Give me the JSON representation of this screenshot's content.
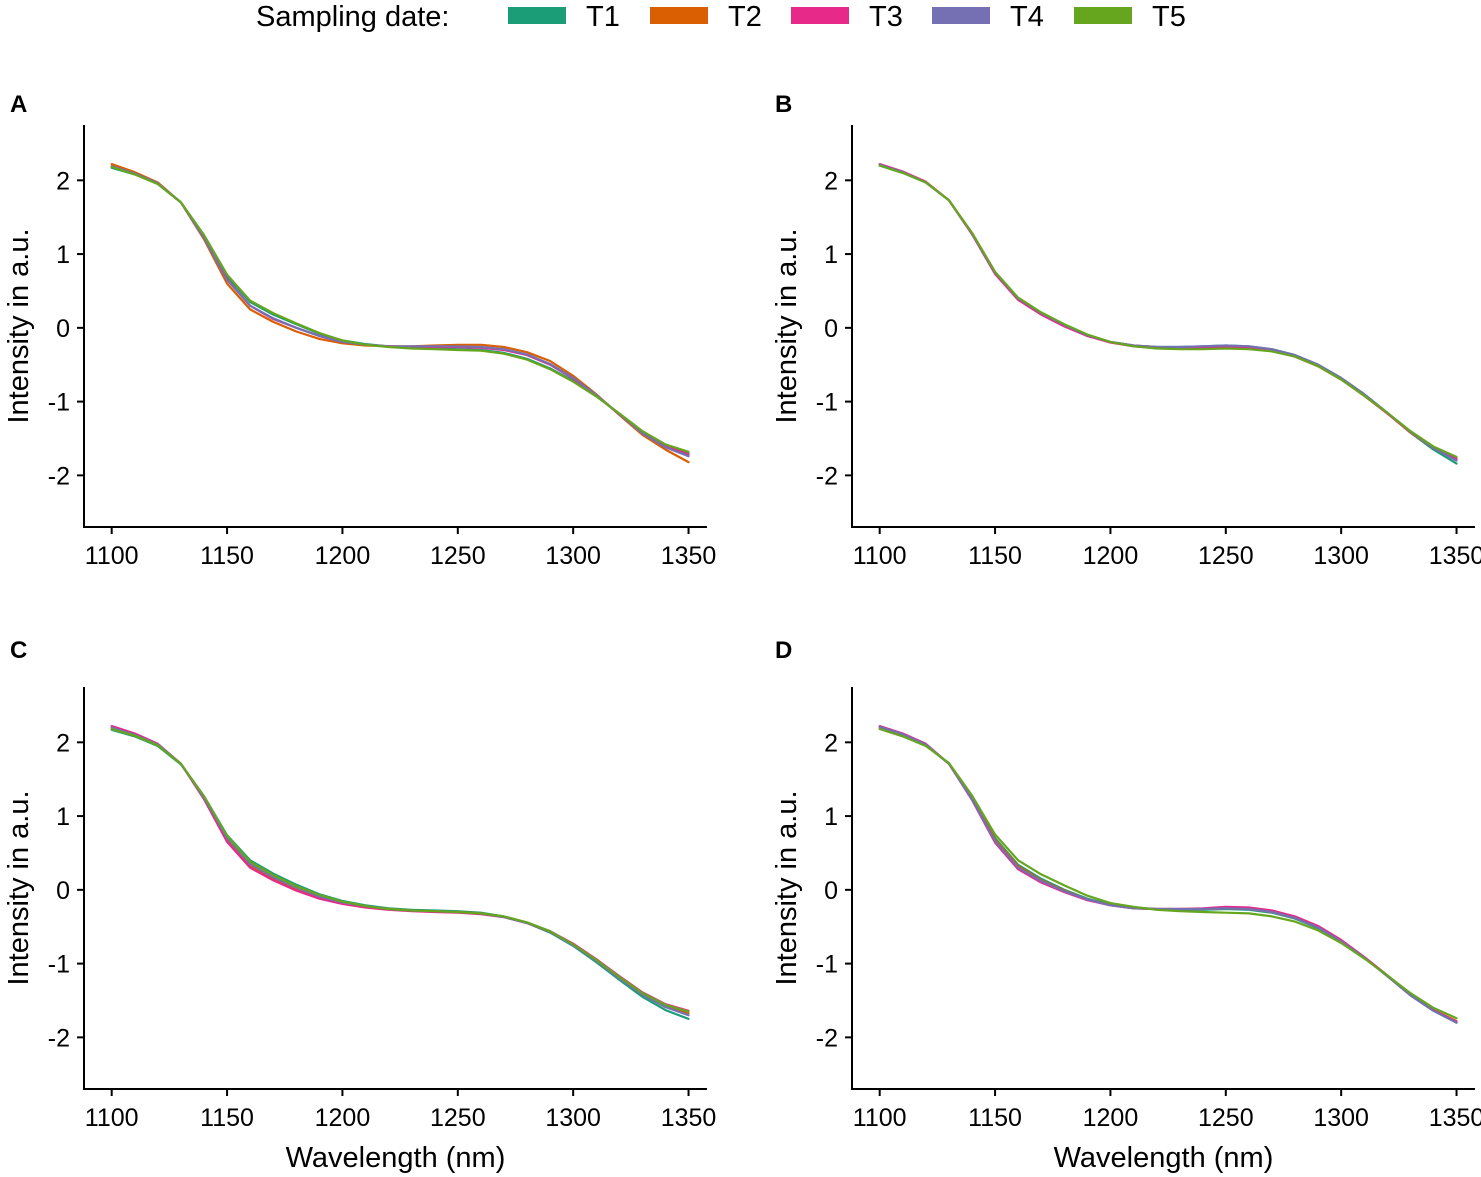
{
  "legend": {
    "title": "Sampling date:",
    "items": [
      {
        "label": "T1",
        "color": "#1B9E77"
      },
      {
        "label": "T2",
        "color": "#D95F02"
      },
      {
        "label": "T3",
        "color": "#E7298A"
      },
      {
        "label": "T4",
        "color": "#7570B3"
      },
      {
        "label": "T5",
        "color": "#66A61E"
      }
    ]
  },
  "chart_data": [
    {
      "type": "line",
      "panel_label": "A",
      "xlabel": "",
      "ylabel": "Intensity in a.u.",
      "xlim": [
        1088,
        1358
      ],
      "ylim": [
        -2.7,
        2.75
      ],
      "xticks": [
        1100,
        1150,
        1200,
        1250,
        1300,
        1350
      ],
      "yticks": [
        -2,
        -1,
        0,
        1,
        2
      ],
      "x": [
        1100,
        1110,
        1120,
        1130,
        1140,
        1150,
        1160,
        1170,
        1180,
        1190,
        1200,
        1210,
        1220,
        1230,
        1240,
        1250,
        1260,
        1270,
        1280,
        1290,
        1300,
        1310,
        1320,
        1330,
        1340,
        1350
      ],
      "series": [
        {
          "name": "T1",
          "values": [
            2.17,
            2.08,
            1.95,
            1.7,
            1.25,
            0.7,
            0.35,
            0.18,
            0.05,
            -0.08,
            -0.17,
            -0.22,
            -0.25,
            -0.27,
            -0.28,
            -0.29,
            -0.3,
            -0.34,
            -0.42,
            -0.55,
            -0.72,
            -0.92,
            -1.17,
            -1.42,
            -1.6,
            -1.7
          ]
        },
        {
          "name": "T2",
          "values": [
            2.22,
            2.11,
            1.97,
            1.7,
            1.2,
            0.6,
            0.25,
            0.08,
            -0.05,
            -0.15,
            -0.21,
            -0.24,
            -0.25,
            -0.25,
            -0.24,
            -0.23,
            -0.23,
            -0.26,
            -0.33,
            -0.45,
            -0.65,
            -0.9,
            -1.18,
            -1.45,
            -1.65,
            -1.82
          ]
        },
        {
          "name": "T3",
          "values": [
            2.19,
            2.09,
            1.96,
            1.7,
            1.23,
            0.66,
            0.3,
            0.12,
            0.0,
            -0.11,
            -0.19,
            -0.23,
            -0.25,
            -0.26,
            -0.26,
            -0.26,
            -0.27,
            -0.3,
            -0.37,
            -0.5,
            -0.69,
            -0.92,
            -1.17,
            -1.42,
            -1.6,
            -1.72
          ]
        },
        {
          "name": "T4",
          "values": [
            2.19,
            2.09,
            1.96,
            1.7,
            1.22,
            0.65,
            0.3,
            0.13,
            0.0,
            -0.11,
            -0.19,
            -0.23,
            -0.25,
            -0.25,
            -0.25,
            -0.25,
            -0.26,
            -0.29,
            -0.36,
            -0.49,
            -0.68,
            -0.91,
            -1.17,
            -1.43,
            -1.62,
            -1.74
          ]
        },
        {
          "name": "T5",
          "values": [
            2.18,
            2.08,
            1.95,
            1.7,
            1.26,
            0.72,
            0.37,
            0.2,
            0.06,
            -0.07,
            -0.17,
            -0.23,
            -0.26,
            -0.28,
            -0.29,
            -0.3,
            -0.31,
            -0.35,
            -0.43,
            -0.56,
            -0.73,
            -0.93,
            -1.16,
            -1.4,
            -1.58,
            -1.68
          ]
        }
      ]
    },
    {
      "type": "line",
      "panel_label": "B",
      "xlabel": "",
      "ylabel": "Intensity in a.u.",
      "xlim": [
        1088,
        1358
      ],
      "ylim": [
        -2.7,
        2.75
      ],
      "xticks": [
        1100,
        1150,
        1200,
        1250,
        1300,
        1350
      ],
      "yticks": [
        -2,
        -1,
        0,
        1,
        2
      ],
      "x": [
        1100,
        1110,
        1120,
        1130,
        1140,
        1150,
        1160,
        1170,
        1180,
        1190,
        1200,
        1210,
        1220,
        1230,
        1240,
        1250,
        1260,
        1270,
        1280,
        1290,
        1300,
        1310,
        1320,
        1330,
        1340,
        1350
      ],
      "series": [
        {
          "name": "T1",
          "values": [
            2.2,
            2.1,
            1.97,
            1.73,
            1.28,
            0.75,
            0.4,
            0.2,
            0.04,
            -0.1,
            -0.19,
            -0.24,
            -0.26,
            -0.26,
            -0.25,
            -0.24,
            -0.25,
            -0.29,
            -0.37,
            -0.5,
            -0.68,
            -0.9,
            -1.15,
            -1.42,
            -1.65,
            -1.84
          ]
        },
        {
          "name": "T2",
          "values": [
            2.21,
            2.11,
            1.98,
            1.73,
            1.28,
            0.74,
            0.39,
            0.19,
            0.03,
            -0.11,
            -0.19,
            -0.24,
            -0.26,
            -0.27,
            -0.27,
            -0.26,
            -0.27,
            -0.31,
            -0.39,
            -0.52,
            -0.7,
            -0.92,
            -1.16,
            -1.42,
            -1.63,
            -1.78
          ]
        },
        {
          "name": "T3",
          "values": [
            2.22,
            2.12,
            1.98,
            1.73,
            1.27,
            0.73,
            0.38,
            0.18,
            0.02,
            -0.11,
            -0.2,
            -0.25,
            -0.27,
            -0.27,
            -0.27,
            -0.26,
            -0.27,
            -0.31,
            -0.39,
            -0.52,
            -0.7,
            -0.92,
            -1.16,
            -1.41,
            -1.62,
            -1.77
          ]
        },
        {
          "name": "T4",
          "values": [
            2.21,
            2.11,
            1.97,
            1.73,
            1.28,
            0.75,
            0.4,
            0.2,
            0.04,
            -0.1,
            -0.19,
            -0.24,
            -0.26,
            -0.26,
            -0.25,
            -0.24,
            -0.25,
            -0.29,
            -0.37,
            -0.5,
            -0.68,
            -0.9,
            -1.15,
            -1.41,
            -1.63,
            -1.8
          ]
        },
        {
          "name": "T5",
          "values": [
            2.2,
            2.1,
            1.97,
            1.73,
            1.29,
            0.76,
            0.41,
            0.21,
            0.05,
            -0.09,
            -0.19,
            -0.25,
            -0.28,
            -0.29,
            -0.29,
            -0.28,
            -0.29,
            -0.32,
            -0.39,
            -0.52,
            -0.7,
            -0.92,
            -1.15,
            -1.4,
            -1.61,
            -1.75
          ]
        }
      ]
    },
    {
      "type": "line",
      "panel_label": "C",
      "xlabel": "Wavelength (nm)",
      "ylabel": "Intensity in a.u.",
      "xlim": [
        1088,
        1358
      ],
      "ylim": [
        -2.7,
        2.75
      ],
      "xticks": [
        1100,
        1150,
        1200,
        1250,
        1300,
        1350
      ],
      "yticks": [
        -2,
        -1,
        0,
        1,
        2
      ],
      "x": [
        1100,
        1110,
        1120,
        1130,
        1140,
        1150,
        1160,
        1170,
        1180,
        1190,
        1200,
        1210,
        1220,
        1230,
        1240,
        1250,
        1260,
        1270,
        1280,
        1290,
        1300,
        1310,
        1320,
        1330,
        1340,
        1350
      ],
      "series": [
        {
          "name": "T1",
          "values": [
            2.17,
            2.08,
            1.95,
            1.7,
            1.27,
            0.74,
            0.4,
            0.22,
            0.07,
            -0.06,
            -0.15,
            -0.21,
            -0.25,
            -0.27,
            -0.28,
            -0.29,
            -0.31,
            -0.36,
            -0.45,
            -0.58,
            -0.76,
            -0.98,
            -1.22,
            -1.45,
            -1.63,
            -1.75
          ]
        },
        {
          "name": "T2",
          "values": [
            2.2,
            2.1,
            1.97,
            1.71,
            1.24,
            0.68,
            0.33,
            0.15,
            0.01,
            -0.1,
            -0.18,
            -0.23,
            -0.26,
            -0.28,
            -0.29,
            -0.3,
            -0.32,
            -0.37,
            -0.45,
            -0.57,
            -0.74,
            -0.95,
            -1.18,
            -1.4,
            -1.57,
            -1.67
          ]
        },
        {
          "name": "T3",
          "values": [
            2.22,
            2.12,
            1.98,
            1.71,
            1.23,
            0.65,
            0.3,
            0.13,
            -0.01,
            -0.12,
            -0.19,
            -0.24,
            -0.27,
            -0.29,
            -0.3,
            -0.31,
            -0.33,
            -0.37,
            -0.45,
            -0.56,
            -0.73,
            -0.94,
            -1.17,
            -1.39,
            -1.55,
            -1.64
          ]
        },
        {
          "name": "T4",
          "values": [
            2.2,
            2.1,
            1.97,
            1.71,
            1.25,
            0.7,
            0.35,
            0.17,
            0.03,
            -0.09,
            -0.17,
            -0.22,
            -0.26,
            -0.28,
            -0.29,
            -0.3,
            -0.32,
            -0.37,
            -0.45,
            -0.57,
            -0.75,
            -0.96,
            -1.2,
            -1.42,
            -1.59,
            -1.7
          ]
        },
        {
          "name": "T5",
          "values": [
            2.18,
            2.09,
            1.96,
            1.71,
            1.27,
            0.73,
            0.38,
            0.2,
            0.05,
            -0.07,
            -0.16,
            -0.22,
            -0.26,
            -0.28,
            -0.29,
            -0.3,
            -0.32,
            -0.36,
            -0.44,
            -0.56,
            -0.74,
            -0.95,
            -1.18,
            -1.4,
            -1.56,
            -1.65
          ]
        }
      ]
    },
    {
      "type": "line",
      "panel_label": "D",
      "xlabel": "Wavelength (nm)",
      "ylabel": "Intensity in a.u.",
      "xlim": [
        1088,
        1358
      ],
      "ylim": [
        -2.7,
        2.75
      ],
      "xticks": [
        1100,
        1150,
        1200,
        1250,
        1300,
        1350
      ],
      "yticks": [
        -2,
        -1,
        0,
        1,
        2
      ],
      "x": [
        1100,
        1110,
        1120,
        1130,
        1140,
        1150,
        1160,
        1170,
        1180,
        1190,
        1200,
        1210,
        1220,
        1230,
        1240,
        1250,
        1260,
        1270,
        1280,
        1290,
        1300,
        1310,
        1320,
        1330,
        1340,
        1350
      ],
      "series": [
        {
          "name": "T1",
          "values": [
            2.19,
            2.09,
            1.96,
            1.71,
            1.25,
            0.7,
            0.34,
            0.15,
            0.0,
            -0.12,
            -0.2,
            -0.24,
            -0.26,
            -0.27,
            -0.27,
            -0.26,
            -0.27,
            -0.31,
            -0.39,
            -0.52,
            -0.7,
            -0.92,
            -1.17,
            -1.43,
            -1.64,
            -1.8
          ]
        },
        {
          "name": "T2",
          "values": [
            2.2,
            2.1,
            1.97,
            1.71,
            1.24,
            0.68,
            0.32,
            0.13,
            -0.01,
            -0.13,
            -0.21,
            -0.25,
            -0.26,
            -0.26,
            -0.26,
            -0.25,
            -0.26,
            -0.3,
            -0.38,
            -0.51,
            -0.69,
            -0.91,
            -1.16,
            -1.42,
            -1.63,
            -1.78
          ]
        },
        {
          "name": "T3",
          "values": [
            2.22,
            2.12,
            1.98,
            1.71,
            1.22,
            0.64,
            0.28,
            0.1,
            -0.03,
            -0.14,
            -0.21,
            -0.25,
            -0.26,
            -0.26,
            -0.25,
            -0.23,
            -0.24,
            -0.28,
            -0.36,
            -0.49,
            -0.68,
            -0.91,
            -1.16,
            -1.42,
            -1.63,
            -1.79
          ]
        },
        {
          "name": "T4",
          "values": [
            2.21,
            2.11,
            1.97,
            1.71,
            1.23,
            0.66,
            0.3,
            0.12,
            -0.02,
            -0.13,
            -0.21,
            -0.25,
            -0.26,
            -0.26,
            -0.26,
            -0.25,
            -0.26,
            -0.3,
            -0.38,
            -0.51,
            -0.7,
            -0.92,
            -1.17,
            -1.43,
            -1.64,
            -1.8
          ]
        },
        {
          "name": "T5",
          "values": [
            2.18,
            2.08,
            1.95,
            1.72,
            1.28,
            0.75,
            0.4,
            0.21,
            0.06,
            -0.08,
            -0.18,
            -0.23,
            -0.27,
            -0.29,
            -0.3,
            -0.31,
            -0.32,
            -0.36,
            -0.43,
            -0.55,
            -0.72,
            -0.93,
            -1.16,
            -1.4,
            -1.6,
            -1.74
          ]
        }
      ]
    }
  ]
}
